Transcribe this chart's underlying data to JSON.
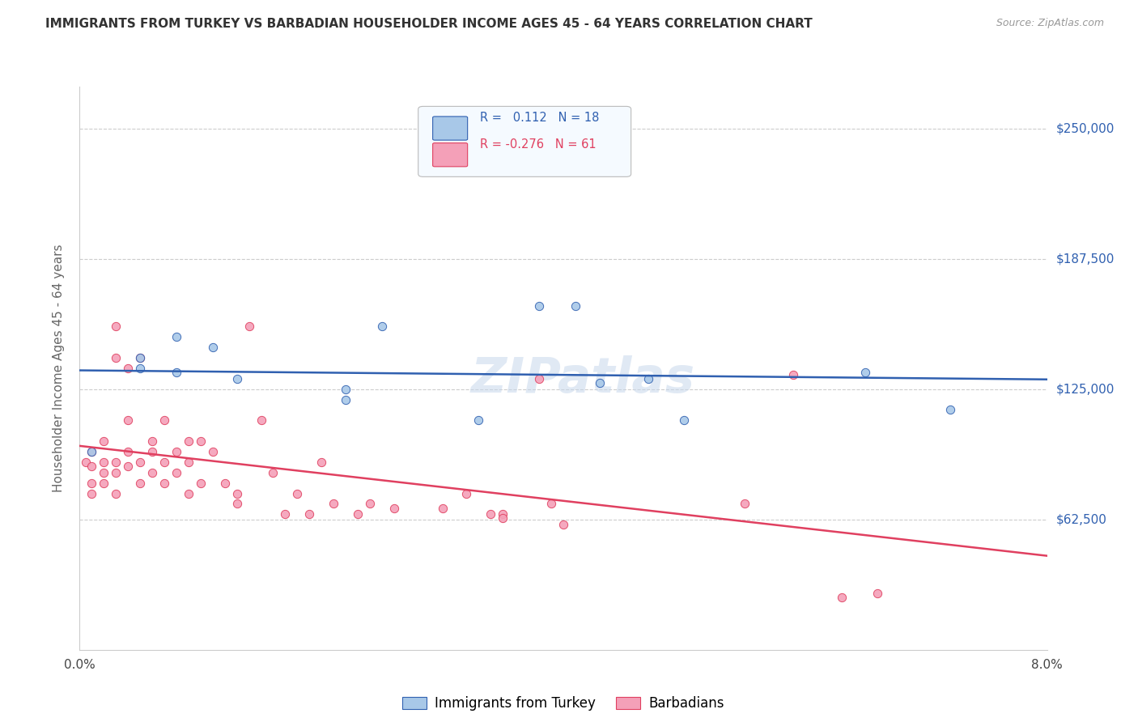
{
  "title": "IMMIGRANTS FROM TURKEY VS BARBADIAN HOUSEHOLDER INCOME AGES 45 - 64 YEARS CORRELATION CHART",
  "source": "Source: ZipAtlas.com",
  "xlabel": "",
  "ylabel": "Householder Income Ages 45 - 64 years",
  "xlim": [
    0.0,
    0.08
  ],
  "ylim": [
    0,
    270000
  ],
  "yticks": [
    0,
    62500,
    125000,
    187500,
    250000
  ],
  "ytick_labels": [
    "",
    "$62,500",
    "$125,000",
    "$187,500",
    "$250,000"
  ],
  "xticks": [
    0.0,
    0.01,
    0.02,
    0.03,
    0.04,
    0.05,
    0.06,
    0.07,
    0.08
  ],
  "xtick_labels": [
    "0.0%",
    "",
    "",
    "",
    "",
    "",
    "",
    "",
    "8.0%"
  ],
  "turkey_color": "#A8C8E8",
  "barbadian_color": "#F4A0B8",
  "turkey_line_color": "#3060B0",
  "barbadian_line_color": "#E04060",
  "turkey_R": 0.112,
  "turkey_N": 18,
  "barbadian_R": -0.276,
  "barbadian_N": 61,
  "watermark": "ZIPatlas",
  "turkey_scatter_x": [
    0.001,
    0.005,
    0.005,
    0.008,
    0.008,
    0.011,
    0.013,
    0.022,
    0.022,
    0.025,
    0.033,
    0.038,
    0.041,
    0.043,
    0.047,
    0.05,
    0.065,
    0.072
  ],
  "turkey_scatter_y": [
    95000,
    140000,
    135000,
    150000,
    133000,
    145000,
    130000,
    125000,
    120000,
    155000,
    110000,
    165000,
    165000,
    128000,
    130000,
    110000,
    133000,
    115000
  ],
  "barbadian_scatter_x": [
    0.0005,
    0.001,
    0.001,
    0.001,
    0.001,
    0.002,
    0.002,
    0.002,
    0.002,
    0.003,
    0.003,
    0.003,
    0.003,
    0.003,
    0.004,
    0.004,
    0.004,
    0.004,
    0.005,
    0.005,
    0.005,
    0.006,
    0.006,
    0.006,
    0.007,
    0.007,
    0.007,
    0.008,
    0.008,
    0.009,
    0.009,
    0.009,
    0.01,
    0.01,
    0.011,
    0.012,
    0.013,
    0.013,
    0.014,
    0.015,
    0.016,
    0.017,
    0.018,
    0.019,
    0.02,
    0.021,
    0.023,
    0.024,
    0.026,
    0.03,
    0.032,
    0.034,
    0.035,
    0.035,
    0.038,
    0.039,
    0.04,
    0.055,
    0.059,
    0.063,
    0.066
  ],
  "barbadian_scatter_y": [
    90000,
    95000,
    88000,
    80000,
    75000,
    100000,
    90000,
    85000,
    80000,
    155000,
    140000,
    90000,
    85000,
    75000,
    135000,
    110000,
    95000,
    88000,
    140000,
    90000,
    80000,
    100000,
    95000,
    85000,
    110000,
    90000,
    80000,
    95000,
    85000,
    100000,
    90000,
    75000,
    100000,
    80000,
    95000,
    80000,
    75000,
    70000,
    155000,
    110000,
    85000,
    65000,
    75000,
    65000,
    90000,
    70000,
    65000,
    70000,
    68000,
    68000,
    75000,
    65000,
    65000,
    63000,
    130000,
    70000,
    60000,
    70000,
    132000,
    25000,
    27000
  ],
  "background_color": "#FFFFFF",
  "grid_color": "#CCCCCC"
}
